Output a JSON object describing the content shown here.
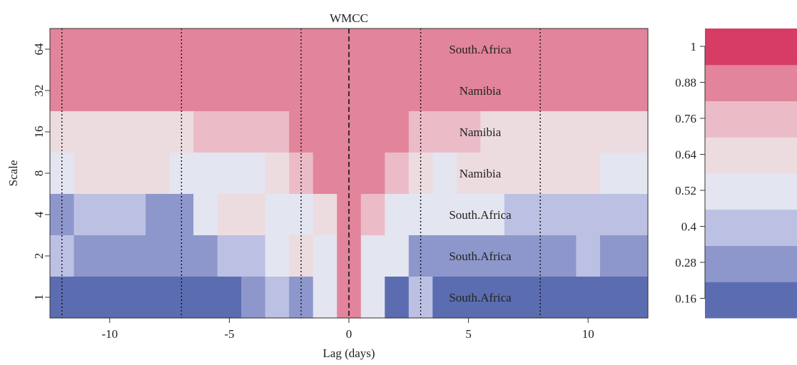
{
  "chart_data": {
    "type": "heatmap",
    "title": "WMCC",
    "xlabel": "Lag (days)",
    "ylabel": "Scale",
    "x_ticks": [
      -10,
      -5,
      0,
      5,
      10
    ],
    "x_range": [
      -12.5,
      12.5
    ],
    "y_ticks": [
      "1",
      "2",
      "4",
      "8",
      "16",
      "32",
      "64"
    ],
    "lags": [
      -12,
      -11,
      -10,
      -9,
      -8,
      -7,
      -6,
      -5,
      -4,
      -3,
      -2,
      -1,
      0,
      1,
      2,
      3,
      4,
      5,
      6,
      7,
      8,
      9,
      10,
      11,
      12
    ],
    "scales": [
      {
        "scale": "64",
        "label": "South.Africa",
        "values": [
          0.99,
          0.99,
          0.99,
          0.99,
          0.99,
          0.99,
          0.99,
          0.99,
          0.99,
          0.99,
          0.99,
          0.99,
          0.99,
          0.99,
          0.99,
          0.99,
          0.99,
          0.99,
          0.99,
          0.99,
          0.99,
          0.99,
          0.99,
          0.99,
          0.99
        ]
      },
      {
        "scale": "32",
        "label": "Namibia",
        "values": [
          0.95,
          0.95,
          0.95,
          0.95,
          0.95,
          0.96,
          0.96,
          0.96,
          0.97,
          0.97,
          0.98,
          0.98,
          0.99,
          0.99,
          0.99,
          0.98,
          0.98,
          0.97,
          0.97,
          0.97,
          0.97,
          0.97,
          0.97,
          0.97,
          0.97
        ]
      },
      {
        "scale": "16",
        "label": "Namibia",
        "values": [
          0.7,
          0.71,
          0.71,
          0.71,
          0.72,
          0.74,
          0.78,
          0.81,
          0.84,
          0.87,
          0.9,
          0.93,
          0.96,
          0.93,
          0.89,
          0.84,
          0.8,
          0.76,
          0.74,
          0.72,
          0.72,
          0.71,
          0.71,
          0.7,
          0.7
        ]
      },
      {
        "scale": "8",
        "label": "Namibia",
        "values": [
          0.62,
          0.66,
          0.69,
          0.69,
          0.67,
          0.61,
          0.58,
          0.58,
          0.6,
          0.68,
          0.8,
          0.88,
          0.94,
          0.88,
          0.78,
          0.68,
          0.63,
          0.64,
          0.66,
          0.66,
          0.68,
          0.68,
          0.67,
          0.62,
          0.6
        ]
      },
      {
        "scale": "4",
        "label": "South.Africa",
        "values": [
          0.34,
          0.42,
          0.46,
          0.45,
          0.39,
          0.36,
          0.57,
          0.65,
          0.64,
          0.57,
          0.56,
          0.74,
          0.93,
          0.76,
          0.57,
          0.52,
          0.6,
          0.63,
          0.52,
          0.49,
          0.46,
          0.45,
          0.47,
          0.49,
          0.5
        ]
      },
      {
        "scale": "2",
        "label": "South.Africa",
        "values": [
          0.46,
          0.31,
          0.36,
          0.34,
          0.3,
          0.39,
          0.39,
          0.4,
          0.44,
          0.62,
          0.64,
          0.56,
          0.92,
          0.55,
          0.63,
          0.36,
          0.34,
          0.36,
          0.37,
          0.34,
          0.38,
          0.29,
          0.48,
          0.37,
          0.37
        ]
      },
      {
        "scale": "1",
        "label": "South.Africa",
        "values": [
          0.2,
          0.21,
          0.23,
          0.22,
          0.24,
          0.19,
          0.19,
          0.19,
          0.34,
          0.47,
          0.31,
          0.6,
          0.92,
          0.6,
          0.21,
          0.47,
          0.23,
          0.21,
          0.23,
          0.22,
          0.22,
          0.21,
          0.2,
          0.18,
          0.17
        ]
      }
    ],
    "vertical_lines": [
      {
        "x": -12,
        "style": "dotted"
      },
      {
        "x": -7,
        "style": "dotted"
      },
      {
        "x": -2,
        "style": "dotted"
      },
      {
        "x": 0,
        "style": "dashed"
      },
      {
        "x": 3,
        "style": "dotted"
      },
      {
        "x": 8,
        "style": "dotted"
      }
    ],
    "color_scale": {
      "ticks": [
        "1",
        "0.88",
        "0.76",
        "0.64",
        "0.52",
        "0.4",
        "0.28",
        "0.16"
      ],
      "bins": [
        {
          "min": 0.16,
          "max": 0.28,
          "color": "#5b6db0"
        },
        {
          "min": 0.28,
          "max": 0.4,
          "color": "#8e97cc"
        },
        {
          "min": 0.4,
          "max": 0.52,
          "color": "#bcc1e3"
        },
        {
          "min": 0.52,
          "max": 0.64,
          "color": "#e3e5f0"
        },
        {
          "min": 0.64,
          "max": 0.76,
          "color": "#eddcdf"
        },
        {
          "min": 0.76,
          "max": 0.88,
          "color": "#ebbcc7"
        },
        {
          "min": 0.88,
          "max": 1.0,
          "color": "#e2849b"
        },
        {
          "min": 1.0,
          "max": 1.12,
          "color": "#d63c66"
        }
      ]
    }
  }
}
